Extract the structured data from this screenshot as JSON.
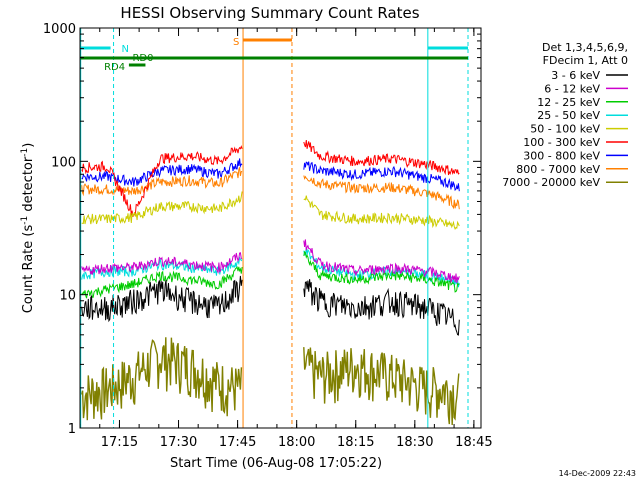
{
  "chart_data": {
    "type": "line",
    "title": "HESSI Observing Summary Count Rates",
    "xlabel": "Start Time (06-Aug-08 17:05:22)",
    "ylabel_main": "Count Rate (s",
    "ylabel_sup1": "-1",
    "ylabel_mid": " detector",
    "ylabel_sup2": "-1",
    "ylabel_end": ")",
    "footer_date": "14-Dec-2009 22:43",
    "y_scale": "log",
    "ylim": [
      1,
      1000
    ],
    "xlim_minutes": [
      17.083,
      18.78
    ],
    "x_ticks": [
      {
        "m": 17.25,
        "label": "17:15"
      },
      {
        "m": 17.5,
        "label": "17:30"
      },
      {
        "m": 17.75,
        "label": "17:45"
      },
      {
        "m": 18.0,
        "label": "18:00"
      },
      {
        "m": 18.25,
        "label": "18:15"
      },
      {
        "m": 18.5,
        "label": "18:30"
      },
      {
        "m": 18.75,
        "label": "18:45"
      }
    ],
    "y_ticks": [
      {
        "v": 1,
        "label": "1"
      },
      {
        "v": 10,
        "label": "10"
      },
      {
        "v": 100,
        "label": "100"
      },
      {
        "v": 1000,
        "label": "1000"
      }
    ],
    "legend_header": [
      "Det 1,3,4,5,6,9,",
      "FDecim 1, Att 0"
    ],
    "legend_position": "right",
    "series": [
      {
        "name": "3 - 6 keV",
        "color": "#000000",
        "pre": [
          [
            17.09,
            8
          ],
          [
            17.2,
            8
          ],
          [
            17.31,
            9
          ],
          [
            17.42,
            11
          ],
          [
            17.55,
            9
          ],
          [
            17.67,
            8
          ],
          [
            17.77,
            12
          ]
        ],
        "post": [
          [
            18.03,
            12
          ],
          [
            18.1,
            9
          ],
          [
            18.25,
            8
          ],
          [
            18.4,
            9
          ],
          [
            18.55,
            8
          ],
          [
            18.63,
            7
          ],
          [
            18.69,
            6
          ]
        ]
      },
      {
        "name": "6 - 12 keV",
        "color": "#cc00cc",
        "pre": [
          [
            17.09,
            15
          ],
          [
            17.2,
            16
          ],
          [
            17.31,
            16
          ],
          [
            17.42,
            18
          ],
          [
            17.55,
            17
          ],
          [
            17.67,
            16
          ],
          [
            17.77,
            20
          ]
        ],
        "post": [
          [
            18.03,
            25
          ],
          [
            18.1,
            17
          ],
          [
            18.25,
            15
          ],
          [
            18.4,
            16
          ],
          [
            18.55,
            15
          ],
          [
            18.63,
            14
          ],
          [
            18.69,
            13
          ]
        ]
      },
      {
        "name": "12 - 25 keV",
        "color": "#00cc00",
        "pre": [
          [
            17.09,
            10
          ],
          [
            17.2,
            11
          ],
          [
            17.31,
            12
          ],
          [
            17.42,
            14
          ],
          [
            17.55,
            13
          ],
          [
            17.67,
            12
          ],
          [
            17.77,
            16
          ]
        ],
        "post": [
          [
            18.03,
            20
          ],
          [
            18.1,
            14
          ],
          [
            18.25,
            13
          ],
          [
            18.4,
            14
          ],
          [
            18.55,
            13
          ],
          [
            18.63,
            12
          ],
          [
            18.69,
            11
          ]
        ]
      },
      {
        "name": "25 - 50 keV",
        "color": "#00dddd",
        "pre": [
          [
            17.09,
            14
          ],
          [
            17.2,
            15
          ],
          [
            17.31,
            15
          ],
          [
            17.42,
            17
          ],
          [
            17.55,
            16
          ],
          [
            17.67,
            15
          ],
          [
            17.77,
            18
          ]
        ],
        "post": [
          [
            18.03,
            22
          ],
          [
            18.1,
            16
          ],
          [
            18.25,
            14
          ],
          [
            18.4,
            15
          ],
          [
            18.55,
            14
          ],
          [
            18.63,
            13
          ],
          [
            18.69,
            12
          ]
        ]
      },
      {
        "name": "50 - 100 keV",
        "color": "#cccc00",
        "pre": [
          [
            17.09,
            37
          ],
          [
            17.2,
            37
          ],
          [
            17.31,
            38
          ],
          [
            17.42,
            46
          ],
          [
            17.55,
            46
          ],
          [
            17.67,
            44
          ],
          [
            17.77,
            55
          ]
        ],
        "post": [
          [
            18.03,
            55
          ],
          [
            18.1,
            40
          ],
          [
            18.25,
            37
          ],
          [
            18.4,
            38
          ],
          [
            18.55,
            36
          ],
          [
            18.63,
            34
          ],
          [
            18.69,
            32
          ]
        ]
      },
      {
        "name": "100 - 300 keV",
        "color": "#ff0000",
        "pre": [
          [
            17.09,
            90
          ],
          [
            17.2,
            92
          ],
          [
            17.31,
            40
          ],
          [
            17.42,
            105
          ],
          [
            17.55,
            110
          ],
          [
            17.67,
            100
          ],
          [
            17.77,
            130
          ]
        ],
        "post": [
          [
            18.03,
            140
          ],
          [
            18.1,
            110
          ],
          [
            18.25,
            100
          ],
          [
            18.4,
            105
          ],
          [
            18.55,
            95
          ],
          [
            18.63,
            88
          ],
          [
            18.69,
            80
          ]
        ]
      },
      {
        "name": "300 - 800 keV",
        "color": "#0000ff",
        "pre": [
          [
            17.09,
            77
          ],
          [
            17.2,
            77
          ],
          [
            17.31,
            70
          ],
          [
            17.42,
            85
          ],
          [
            17.55,
            88
          ],
          [
            17.67,
            80
          ],
          [
            17.77,
            100
          ]
        ],
        "post": [
          [
            18.03,
            95
          ],
          [
            18.1,
            85
          ],
          [
            18.25,
            80
          ],
          [
            18.4,
            85
          ],
          [
            18.55,
            75
          ],
          [
            18.63,
            70
          ],
          [
            18.69,
            63
          ]
        ]
      },
      {
        "name": "800 - 7000 keV",
        "color": "#ff8000",
        "pre": [
          [
            17.09,
            62
          ],
          [
            17.2,
            62
          ],
          [
            17.31,
            60
          ],
          [
            17.42,
            70
          ],
          [
            17.55,
            72
          ],
          [
            17.67,
            68
          ],
          [
            17.77,
            85
          ]
        ],
        "post": [
          [
            18.03,
            80
          ],
          [
            18.1,
            68
          ],
          [
            18.25,
            63
          ],
          [
            18.4,
            64
          ],
          [
            18.55,
            58
          ],
          [
            18.63,
            52
          ],
          [
            18.69,
            47
          ]
        ]
      },
      {
        "name": "7000 - 20000 keV",
        "color": "#808000",
        "pre": [
          [
            17.09,
            1.8
          ],
          [
            17.2,
            2
          ],
          [
            17.31,
            2.5
          ],
          [
            17.42,
            3.5
          ],
          [
            17.55,
            3
          ],
          [
            17.67,
            2.2
          ],
          [
            17.77,
            2
          ]
        ],
        "post": [
          [
            18.03,
            3
          ],
          [
            18.1,
            2.5
          ],
          [
            18.25,
            3
          ],
          [
            18.4,
            2.5
          ],
          [
            18.55,
            2
          ],
          [
            18.63,
            2
          ],
          [
            18.69,
            1.8
          ]
        ]
      }
    ],
    "annotations": {
      "flag_N": "N",
      "flag_RD0": "RD0",
      "flag_RD4": "RD4",
      "flag_S": "S"
    }
  }
}
